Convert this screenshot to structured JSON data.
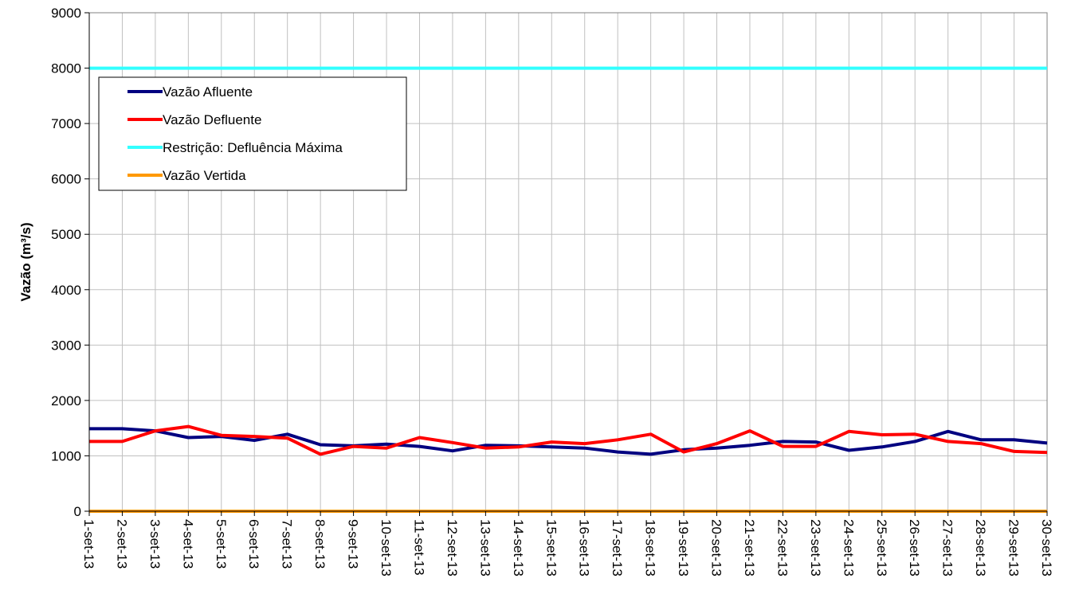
{
  "chart_data": {
    "type": "line",
    "title": "",
    "xlabel": "",
    "ylabel": "Vazão (m³/s)",
    "ylim": [
      0,
      9000
    ],
    "yticks": [
      0,
      1000,
      2000,
      3000,
      4000,
      5000,
      6000,
      7000,
      8000,
      9000
    ],
    "grid": true,
    "legend_position": "top-left",
    "categories": [
      "1-set-13",
      "2-set-13",
      "3-set-13",
      "4-set-13",
      "5-set-13",
      "6-set-13",
      "7-set-13",
      "8-set-13",
      "9-set-13",
      "10-set-13",
      "11-set-13",
      "12-set-13",
      "13-set-13",
      "14-set-13",
      "15-set-13",
      "16-set-13",
      "17-set-13",
      "18-set-13",
      "19-set-13",
      "20-set-13",
      "21-set-13",
      "22-set-13",
      "23-set-13",
      "24-set-13",
      "25-set-13",
      "26-set-13",
      "27-set-13",
      "28-set-13",
      "29-set-13",
      "30-set-13"
    ],
    "series": [
      {
        "name": "Vazão Afluente",
        "color": "#000080",
        "values": [
          1490,
          1490,
          1450,
          1330,
          1350,
          1280,
          1390,
          1200,
          1180,
          1210,
          1170,
          1090,
          1190,
          1180,
          1160,
          1140,
          1070,
          1030,
          1110,
          1140,
          1190,
          1260,
          1250,
          1100,
          1160,
          1260,
          1440,
          1290,
          1290,
          1230
        ]
      },
      {
        "name": "Vazão Defluente",
        "color": "#ff0000",
        "values": [
          1260,
          1260,
          1450,
          1530,
          1370,
          1350,
          1320,
          1030,
          1170,
          1140,
          1330,
          1240,
          1140,
          1160,
          1250,
          1220,
          1290,
          1390,
          1070,
          1220,
          1450,
          1170,
          1170,
          1440,
          1380,
          1390,
          1260,
          1220,
          1080,
          1060
        ]
      },
      {
        "name": "Restrição: Defluência Máxima",
        "color": "#33ffff",
        "values": [
          8000,
          8000,
          8000,
          8000,
          8000,
          8000,
          8000,
          8000,
          8000,
          8000,
          8000,
          8000,
          8000,
          8000,
          8000,
          8000,
          8000,
          8000,
          8000,
          8000,
          8000,
          8000,
          8000,
          8000,
          8000,
          8000,
          8000,
          8000,
          8000,
          8000
        ]
      },
      {
        "name": "Vazão Vertida",
        "color": "#ff9900",
        "values": [
          0,
          0,
          0,
          0,
          0,
          0,
          0,
          0,
          0,
          0,
          0,
          0,
          0,
          0,
          0,
          0,
          0,
          0,
          0,
          0,
          0,
          0,
          0,
          0,
          0,
          0,
          0,
          0,
          0,
          0
        ]
      }
    ]
  }
}
